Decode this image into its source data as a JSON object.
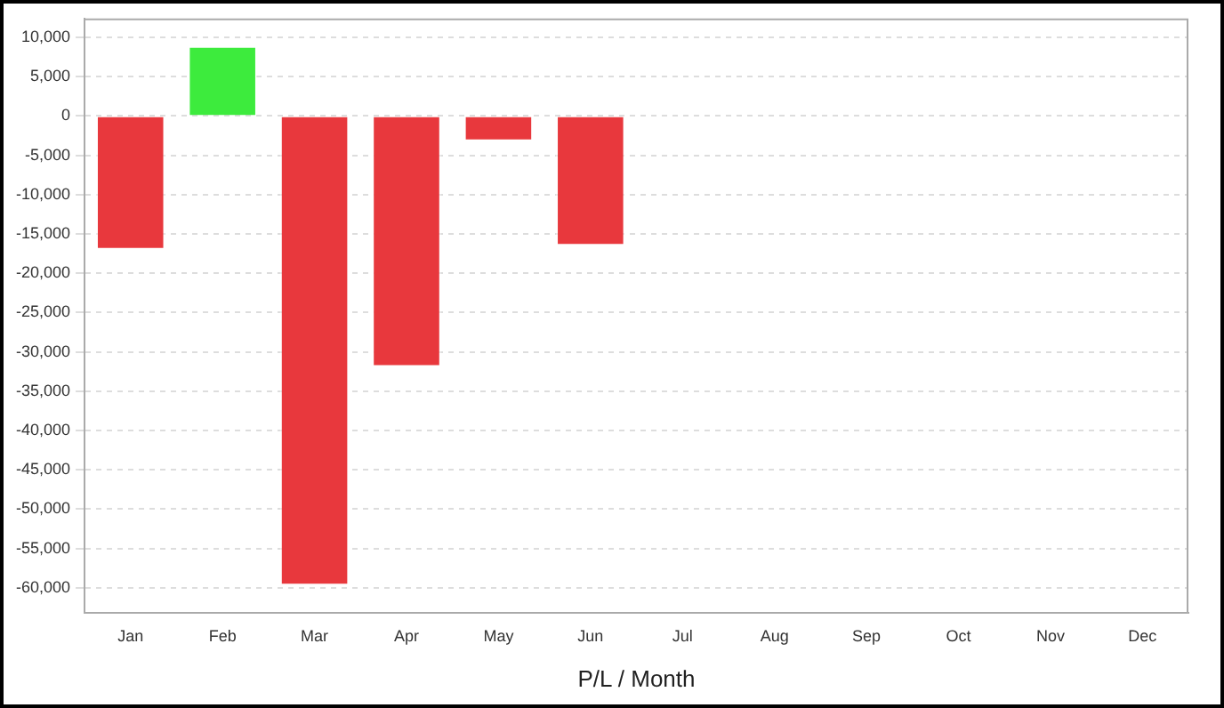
{
  "chart_data": {
    "type": "bar",
    "xlabel": "P/L / Month",
    "categories": [
      "Jan",
      "Feb",
      "Mar",
      "Apr",
      "May",
      "Jun",
      "Jul",
      "Aug",
      "Sep",
      "Oct",
      "Nov",
      "Dec"
    ],
    "values": [
      -17000,
      8900,
      -59700,
      -31900,
      -3200,
      -16500,
      null,
      null,
      null,
      null,
      null,
      null
    ],
    "colors": [
      "#e8383d",
      "#3deb3d",
      "#e8383d",
      "#e8383d",
      "#e8383d",
      "#e8383d",
      "#e8383d",
      "#e8383d",
      "#e8383d",
      "#e8383d",
      "#e8383d",
      "#e8383d"
    ],
    "ylim": [
      -63200,
      12400
    ],
    "yticks": [
      {
        "value": -60000,
        "label": "-60,000"
      },
      {
        "value": -55000,
        "label": "-55,000"
      },
      {
        "value": -50000,
        "label": "-50,000"
      },
      {
        "value": -45000,
        "label": "-45,000"
      },
      {
        "value": -40000,
        "label": "-40,000"
      },
      {
        "value": -35000,
        "label": "-35,000"
      },
      {
        "value": -30000,
        "label": "-30,000"
      },
      {
        "value": -25000,
        "label": "-25,000"
      },
      {
        "value": -20000,
        "label": "-20,000"
      },
      {
        "value": -15000,
        "label": "-15,000"
      },
      {
        "value": -10000,
        "label": "-10,000"
      },
      {
        "value": -5000,
        "label": "-5,000"
      },
      0,
      {
        "value": 5000,
        "label": "5,000"
      },
      {
        "value": 10000,
        "label": "10,000"
      }
    ],
    "grid": "y",
    "legend": false
  }
}
